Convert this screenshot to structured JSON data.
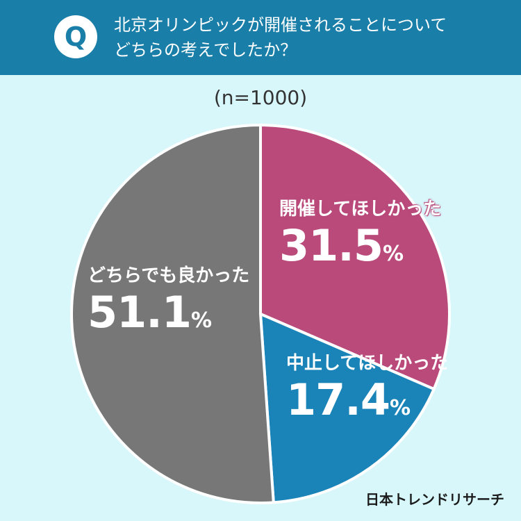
{
  "header": {
    "badge": "Q",
    "question_line1": "北京オリンピックが開催されることについて",
    "question_line2": "どちらの考えでしたか？"
  },
  "sample_size": "(n=1000)",
  "chart_data": {
    "type": "pie",
    "slices": [
      {
        "label": "開催してほしかった",
        "value": 31.5,
        "display": "31.5",
        "color": "#b94a7a"
      },
      {
        "label": "中止してほしかった",
        "value": 17.4,
        "display": "17.4",
        "color": "#1a84b8"
      },
      {
        "label": "どちらでも良かった",
        "value": 51.1,
        "display": "51.1",
        "color": "#777777"
      }
    ],
    "unit": "%"
  },
  "credit": "日本トレンドリサーチ"
}
